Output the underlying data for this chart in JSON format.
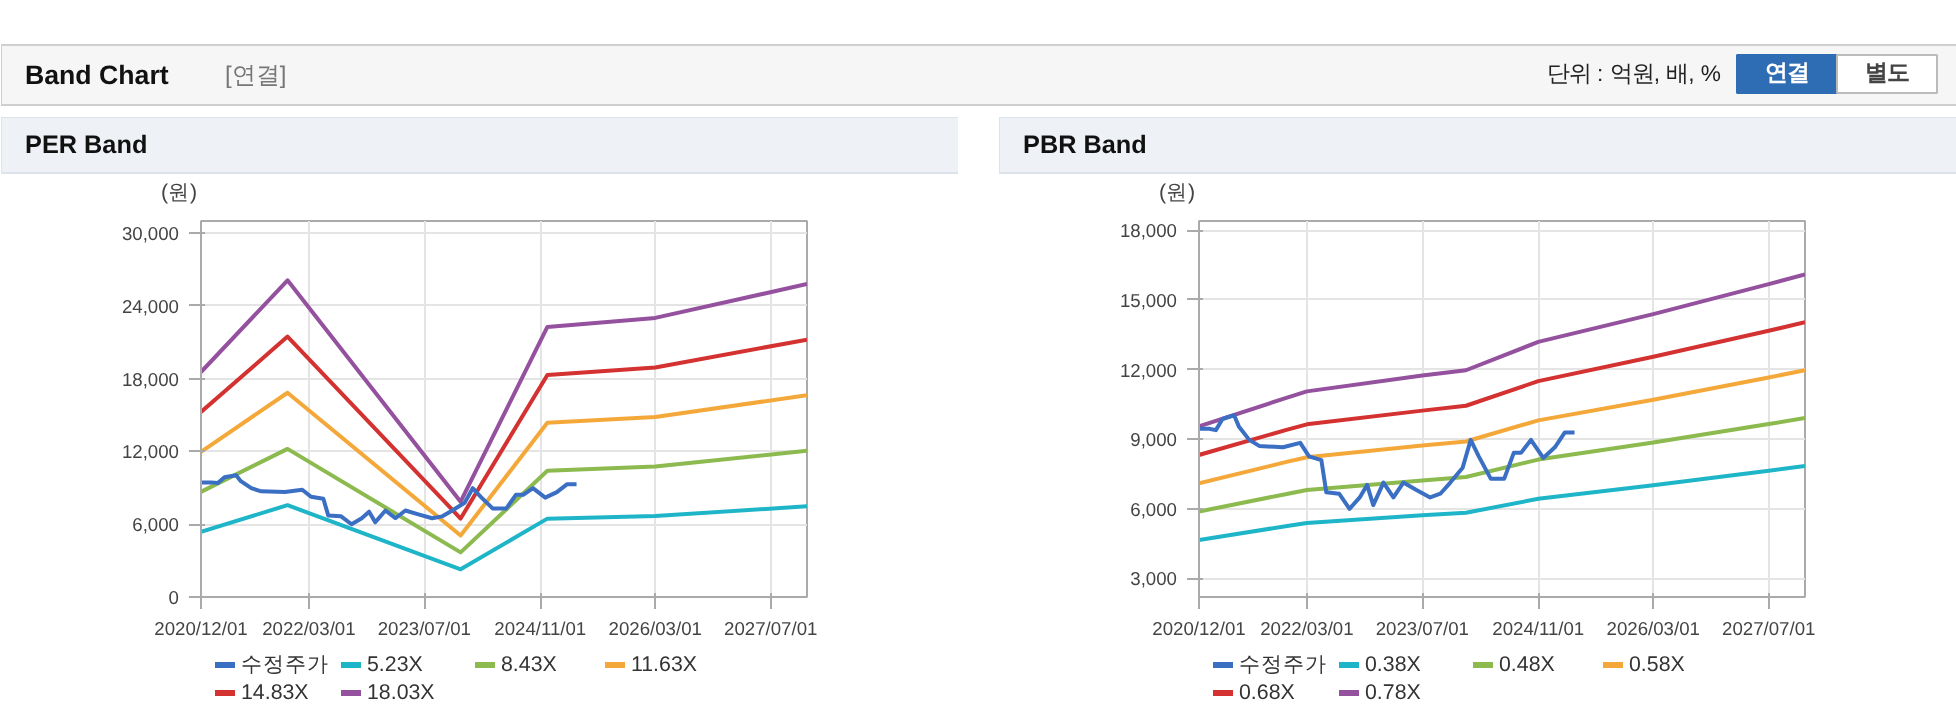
{
  "chart_data": [
    {
      "type": "other",
      "title": "Band Chart",
      "subtitle": "[연결]",
      "annotations": [
        "단위 : 억원, 배, %",
        "연결",
        "별도"
      ]
    },
    {
      "type": "line",
      "title": "PER Band",
      "ylabel": "(원)",
      "legend": "bottom",
      "grid": true,
      "xlim": [
        "2020-12-01",
        "2027-12-01"
      ],
      "xticks": [
        {
          "value": "2020-12-01",
          "label": "2020/12/01"
        },
        {
          "value": "2022-03-01",
          "label": "2022/03/01"
        },
        {
          "value": "2023-07-01",
          "label": "2023/07/01"
        },
        {
          "value": "2024-11-01",
          "label": "2024/11/01"
        },
        {
          "value": "2026-03-01",
          "label": "2026/03/01"
        },
        {
          "value": "2027-07-01",
          "label": "2027/07/01"
        }
      ],
      "ylim": [
        0,
        31000
      ],
      "yticks": [
        0,
        {
          "value": 6000,
          "label": "6,000"
        },
        {
          "value": 12000,
          "label": "12,000"
        },
        {
          "value": 18000,
          "label": "18,000"
        },
        {
          "value": 24000,
          "label": "24,000"
        },
        {
          "value": 30000,
          "label": "30,000"
        }
      ],
      "series": [
        {
          "name": "수정주가",
          "color": "#3a6fc4",
          "x": [
            "2020-12-01",
            "2021-01-13",
            "2021-02-10",
            "2021-03-10",
            "2021-04-28",
            "2021-05-18",
            "2021-07-01",
            "2021-08-12",
            "2021-11-20",
            "2022-02-01",
            "2022-03-10",
            "2022-05-01",
            "2022-05-22",
            "2022-07-15",
            "2022-08-28",
            "2022-10-10",
            "2022-11-10",
            "2022-12-06",
            "2023-01-18",
            "2023-03-01",
            "2023-04-12",
            "2023-06-06",
            "2023-08-03",
            "2023-09-15",
            "2023-10-27",
            "2023-12-18",
            "2024-01-21",
            "2024-02-24",
            "2024-04-15",
            "2024-06-10",
            "2024-07-21",
            "2024-08-21",
            "2024-10-01",
            "2024-11-22",
            "2025-01-10",
            "2025-02-21",
            "2025-04-03"
          ],
          "values": [
            9450,
            9450,
            9390,
            9870,
            10030,
            9550,
            8970,
            8710,
            8650,
            8840,
            8260,
            8100,
            6710,
            6650,
            6000,
            6490,
            7030,
            6160,
            7130,
            6490,
            7130,
            6810,
            6490,
            6650,
            7130,
            7770,
            8970,
            8260,
            7290,
            7290,
            8420,
            8420,
            8970,
            8190,
            8650,
            9290,
            9290
          ]
        },
        {
          "name": "5.23X",
          "color": "#1fb5c8",
          "x": [
            "2020-12-01",
            "2021-12-01",
            "2023-12-01",
            "2024-12-01",
            "2026-03-01",
            "2027-12-01"
          ],
          "values": [
            5380,
            7570,
            2280,
            6460,
            6670,
            7480
          ]
        },
        {
          "name": "8.43X",
          "color": "#8cba4f",
          "x": [
            "2020-12-01",
            "2021-12-01",
            "2023-12-01",
            "2024-12-01",
            "2026-03-01",
            "2027-12-01"
          ],
          "values": [
            8670,
            12210,
            3680,
            10410,
            10760,
            12060
          ]
        },
        {
          "name": "11.63X",
          "color": "#f5a83a",
          "x": [
            "2020-12-01",
            "2021-12-01",
            "2023-12-01",
            "2024-12-01",
            "2026-03-01",
            "2027-12-01"
          ],
          "values": [
            11970,
            16840,
            5070,
            14360,
            14840,
            16640
          ]
        },
        {
          "name": "14.83X",
          "color": "#d43131",
          "x": [
            "2020-12-01",
            "2021-12-01",
            "2023-12-01",
            "2024-12-01",
            "2026-03-01",
            "2027-12-01"
          ],
          "values": [
            15260,
            21470,
            6470,
            18310,
            18920,
            21220
          ]
        },
        {
          "name": "18.03X",
          "color": "#94519e",
          "x": [
            "2020-12-01",
            "2021-12-01",
            "2023-12-01",
            "2024-12-01",
            "2026-03-01",
            "2027-12-01"
          ],
          "values": [
            18550,
            26110,
            7860,
            22270,
            23010,
            25800
          ]
        }
      ]
    },
    {
      "type": "line",
      "title": "PBR Band",
      "ylabel": "(원)",
      "legend": "bottom",
      "grid": true,
      "xlim": [
        "2020-12-01",
        "2027-12-01"
      ],
      "xticks": [
        {
          "value": "2020-12-01",
          "label": "2020/12/01"
        },
        {
          "value": "2022-03-01",
          "label": "2022/03/01"
        },
        {
          "value": "2023-07-01",
          "label": "2023/07/01"
        },
        {
          "value": "2024-11-01",
          "label": "2024/11/01"
        },
        {
          "value": "2026-03-01",
          "label": "2026/03/01"
        },
        {
          "value": "2027-07-01",
          "label": "2027/07/01"
        }
      ],
      "ylim": [
        2200,
        18400
      ],
      "yticks": [
        {
          "value": 3000,
          "label": "3,000"
        },
        {
          "value": 6000,
          "label": "6,000"
        },
        {
          "value": 9000,
          "label": "9,000"
        },
        {
          "value": 12000,
          "label": "12,000"
        },
        {
          "value": 15000,
          "label": "15,000"
        },
        {
          "value": 18000,
          "label": "18,000"
        }
      ],
      "series": [
        {
          "name": "수정주가",
          "color": "#3a6fc4",
          "x": [
            "2020-12-01",
            "2021-01-13",
            "2021-02-10",
            "2021-03-10",
            "2021-04-28",
            "2021-05-18",
            "2021-07-01",
            "2021-08-12",
            "2021-11-20",
            "2022-02-01",
            "2022-03-10",
            "2022-05-01",
            "2022-05-22",
            "2022-07-15",
            "2022-08-28",
            "2022-10-10",
            "2022-11-10",
            "2022-12-06",
            "2023-01-18",
            "2023-03-01",
            "2023-04-12",
            "2023-06-06",
            "2023-08-03",
            "2023-09-15",
            "2023-10-27",
            "2023-12-18",
            "2024-01-21",
            "2024-02-24",
            "2024-04-15",
            "2024-06-10",
            "2024-07-21",
            "2024-08-21",
            "2024-10-01",
            "2024-11-22",
            "2025-01-10",
            "2025-02-21",
            "2025-04-03"
          ],
          "values": [
            9450,
            9450,
            9390,
            9870,
            10030,
            9550,
            8970,
            8710,
            8650,
            8840,
            8260,
            8100,
            6710,
            6650,
            6000,
            6490,
            7030,
            6160,
            7130,
            6490,
            7130,
            6810,
            6490,
            6650,
            7130,
            7770,
            8970,
            8260,
            7290,
            7290,
            8420,
            8420,
            8970,
            8190,
            8650,
            9290,
            9290
          ]
        },
        {
          "name": "0.38X",
          "color": "#1fb5c8",
          "x": [
            "2020-12-01",
            "2021-12-01",
            "2022-03-01",
            "2023-07-01",
            "2024-01-01",
            "2024-11-01",
            "2026-03-01",
            "2027-07-01",
            "2027-12-01"
          ],
          "values": [
            4650,
            5250,
            5390,
            5720,
            5830,
            6430,
            7010,
            7640,
            7840
          ]
        },
        {
          "name": "0.48X",
          "color": "#8cba4f",
          "x": [
            "2020-12-01",
            "2021-12-01",
            "2022-03-01",
            "2023-07-01",
            "2024-01-01",
            "2024-11-01",
            "2026-03-01",
            "2027-07-01",
            "2027-12-01"
          ],
          "values": [
            5880,
            6630,
            6810,
            7220,
            7370,
            8120,
            8860,
            9650,
            9910
          ]
        },
        {
          "name": "0.58X",
          "color": "#f5a83a",
          "x": [
            "2020-12-01",
            "2021-12-01",
            "2022-03-01",
            "2023-07-01",
            "2024-01-01",
            "2024-11-01",
            "2026-03-01",
            "2027-07-01",
            "2027-12-01"
          ],
          "values": [
            7100,
            8010,
            8220,
            8730,
            8900,
            9810,
            10700,
            11660,
            11970
          ]
        },
        {
          "name": "0.68X",
          "color": "#d43131",
          "x": [
            "2020-12-01",
            "2021-12-01",
            "2022-03-01",
            "2023-07-01",
            "2024-01-01",
            "2024-11-01",
            "2026-03-01",
            "2027-07-01",
            "2027-12-01"
          ],
          "values": [
            8320,
            9390,
            9640,
            10230,
            10440,
            11500,
            12550,
            13670,
            14040
          ]
        },
        {
          "name": "0.78X",
          "color": "#94519e",
          "x": [
            "2020-12-01",
            "2021-12-01",
            "2022-03-01",
            "2023-07-01",
            "2024-01-01",
            "2024-11-01",
            "2026-03-01",
            "2027-07-01",
            "2027-12-01"
          ],
          "values": [
            9550,
            10770,
            11060,
            11740,
            11970,
            13190,
            14390,
            15680,
            16100
          ]
        }
      ]
    }
  ]
}
